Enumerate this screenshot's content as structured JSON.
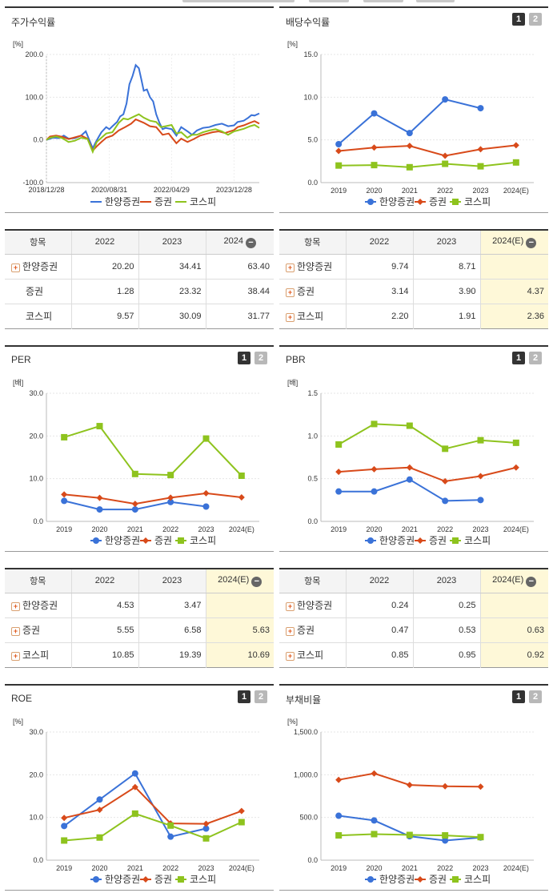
{
  "chart_data": [
    {
      "id": "stock",
      "type": "line",
      "title": "주가수익률",
      "yunit": "[%]",
      "ylim": [
        -100,
        200
      ],
      "yticks": [
        "200.0",
        "100.0",
        "0.0",
        "-100.0"
      ],
      "ytick_values": [
        200,
        100,
        0,
        -100
      ],
      "x_labels": [
        "2018/12/28",
        "2020/08/31",
        "2022/04/29",
        "2023/12/28"
      ],
      "x_start": "2018/12/28",
      "x_end": "2024/08/30",
      "x_tick_dates": [
        "2018/12/28",
        "2020/08/31",
        "2022/04/29",
        "2023/12/28"
      ],
      "series": [
        {
          "name": "한양증권",
          "color": "#3a72d8",
          "points": [
            [
              "2018-12-28",
              0
            ],
            [
              "2019-03-01",
              5
            ],
            [
              "2019-05-01",
              4
            ],
            [
              "2019-06-15",
              10
            ],
            [
              "2019-08-01",
              3
            ],
            [
              "2019-10-01",
              4
            ],
            [
              "2019-12-01",
              10
            ],
            [
              "2020-01-15",
              20
            ],
            [
              "2020-02-15",
              2
            ],
            [
              "2020-03-23",
              -20
            ],
            [
              "2020-04-15",
              -8
            ],
            [
              "2020-05-15",
              5
            ],
            [
              "2020-06-15",
              18
            ],
            [
              "2020-08-01",
              30
            ],
            [
              "2020-09-01",
              25
            ],
            [
              "2020-10-01",
              32
            ],
            [
              "2020-11-15",
              42
            ],
            [
              "2020-12-15",
              55
            ],
            [
              "2021-01-15",
              60
            ],
            [
              "2021-02-15",
              85
            ],
            [
              "2021-03-15",
              130
            ],
            [
              "2021-04-15",
              150
            ],
            [
              "2021-05-15",
              175
            ],
            [
              "2021-06-15",
              168
            ],
            [
              "2021-07-10",
              140
            ],
            [
              "2021-08-01",
              115
            ],
            [
              "2021-09-01",
              118
            ],
            [
              "2021-10-01",
              100
            ],
            [
              "2021-11-01",
              90
            ],
            [
              "2021-12-01",
              60
            ],
            [
              "2022-01-01",
              40
            ],
            [
              "2022-02-01",
              25
            ],
            [
              "2022-03-01",
              28
            ],
            [
              "2022-05-01",
              25
            ],
            [
              "2022-06-15",
              10
            ],
            [
              "2022-08-01",
              30
            ],
            [
              "2022-10-01",
              20
            ],
            [
              "2022-11-15",
              12
            ],
            [
              "2023-01-01",
              22
            ],
            [
              "2023-03-01",
              28
            ],
            [
              "2023-05-01",
              30
            ],
            [
              "2023-07-01",
              35
            ],
            [
              "2023-09-01",
              38
            ],
            [
              "2023-11-01",
              32
            ],
            [
              "2023-12-28",
              34
            ],
            [
              "2024-02-01",
              42
            ],
            [
              "2024-04-01",
              45
            ],
            [
              "2024-05-15",
              52
            ],
            [
              "2024-06-15",
              58
            ],
            [
              "2024-07-15",
              57
            ],
            [
              "2024-08-30",
              62
            ]
          ]
        },
        {
          "name": "증권",
          "color": "#d84a1a",
          "points": [
            [
              "2018-12-28",
              0
            ],
            [
              "2019-02-01",
              8
            ],
            [
              "2019-04-01",
              10
            ],
            [
              "2019-06-01",
              7
            ],
            [
              "2019-08-01",
              2
            ],
            [
              "2019-10-01",
              6
            ],
            [
              "2019-12-01",
              10
            ],
            [
              "2020-02-01",
              3
            ],
            [
              "2020-03-23",
              -25
            ],
            [
              "2020-05-01",
              -15
            ],
            [
              "2020-06-15",
              -5
            ],
            [
              "2020-08-01",
              5
            ],
            [
              "2020-10-01",
              10
            ],
            [
              "2020-12-01",
              22
            ],
            [
              "2021-02-01",
              30
            ],
            [
              "2021-04-01",
              38
            ],
            [
              "2021-05-15",
              48
            ],
            [
              "2021-06-15",
              45
            ],
            [
              "2021-08-01",
              40
            ],
            [
              "2021-10-01",
              32
            ],
            [
              "2021-12-01",
              30
            ],
            [
              "2022-02-01",
              12
            ],
            [
              "2022-04-01",
              15
            ],
            [
              "2022-06-15",
              -8
            ],
            [
              "2022-08-01",
              3
            ],
            [
              "2022-10-01",
              -5
            ],
            [
              "2022-12-01",
              2
            ],
            [
              "2023-02-01",
              10
            ],
            [
              "2023-04-01",
              14
            ],
            [
              "2023-06-01",
              18
            ],
            [
              "2023-08-01",
              20
            ],
            [
              "2023-10-01",
              16
            ],
            [
              "2023-12-28",
              23
            ],
            [
              "2024-02-01",
              30
            ],
            [
              "2024-04-01",
              34
            ],
            [
              "2024-06-01",
              40
            ],
            [
              "2024-07-15",
              44
            ],
            [
              "2024-08-30",
              38
            ]
          ]
        },
        {
          "name": "코스피",
          "color": "#8ec31e",
          "points": [
            [
              "2018-12-28",
              0
            ],
            [
              "2019-02-01",
              5
            ],
            [
              "2019-04-01",
              8
            ],
            [
              "2019-06-01",
              4
            ],
            [
              "2019-08-01",
              -5
            ],
            [
              "2019-10-01",
              -2
            ],
            [
              "2019-12-01",
              5
            ],
            [
              "2020-02-01",
              2
            ],
            [
              "2020-03-23",
              -28
            ],
            [
              "2020-05-01",
              -5
            ],
            [
              "2020-06-15",
              5
            ],
            [
              "2020-08-01",
              15
            ],
            [
              "2020-10-01",
              18
            ],
            [
              "2020-12-01",
              40
            ],
            [
              "2021-01-15",
              50
            ],
            [
              "2021-03-01",
              48
            ],
            [
              "2021-05-01",
              55
            ],
            [
              "2021-06-15",
              60
            ],
            [
              "2021-08-01",
              52
            ],
            [
              "2021-10-01",
              45
            ],
            [
              "2021-12-01",
              42
            ],
            [
              "2022-01-15",
              30
            ],
            [
              "2022-03-01",
              32
            ],
            [
              "2022-04-29",
              35
            ],
            [
              "2022-06-15",
              15
            ],
            [
              "2022-08-01",
              18
            ],
            [
              "2022-09-30",
              5
            ],
            [
              "2022-11-15",
              12
            ],
            [
              "2023-01-01",
              12
            ],
            [
              "2023-03-01",
              18
            ],
            [
              "2023-05-01",
              22
            ],
            [
              "2023-07-01",
              25
            ],
            [
              "2023-09-01",
              20
            ],
            [
              "2023-10-31",
              12
            ],
            [
              "2023-12-28",
              20
            ],
            [
              "2024-02-01",
              22
            ],
            [
              "2024-04-01",
              26
            ],
            [
              "2024-06-01",
              32
            ],
            [
              "2024-07-15",
              35
            ],
            [
              "2024-08-30",
              28
            ]
          ]
        }
      ]
    },
    {
      "id": "div",
      "type": "line",
      "title": "배당수익률",
      "yunit": "[%]",
      "ylim": [
        0,
        15
      ],
      "yticks": [
        "15.0",
        "10.0",
        "5.0",
        "0.0"
      ],
      "ytick_values": [
        15,
        10,
        5,
        0
      ],
      "categories": [
        "2019",
        "2020",
        "2021",
        "2022",
        "2023",
        "2024(E)"
      ],
      "series": [
        {
          "name": "한양증권",
          "color": "#3a72d8",
          "marker": "circle",
          "values": [
            4.5,
            8.1,
            5.8,
            9.74,
            8.71,
            null
          ]
        },
        {
          "name": "증권",
          "color": "#d84a1a",
          "marker": "diamond",
          "values": [
            3.7,
            4.1,
            4.3,
            3.14,
            3.9,
            4.37
          ]
        },
        {
          "name": "코스피",
          "color": "#8ec31e",
          "marker": "square",
          "values": [
            2.0,
            2.05,
            1.8,
            2.2,
            1.91,
            2.36
          ]
        }
      ]
    },
    {
      "id": "per",
      "type": "line",
      "title": "PER",
      "yunit": "[배]",
      "ylim": [
        0,
        30
      ],
      "yticks": [
        "30.0",
        "20.0",
        "10.0",
        "0.0"
      ],
      "ytick_values": [
        30,
        20,
        10,
        0
      ],
      "categories": [
        "2019",
        "2020",
        "2021",
        "2022",
        "2023",
        "2024(E)"
      ],
      "series": [
        {
          "name": "한양증권",
          "color": "#3a72d8",
          "marker": "circle",
          "values": [
            4.8,
            2.8,
            2.8,
            4.53,
            3.47,
            null
          ]
        },
        {
          "name": "증권",
          "color": "#d84a1a",
          "marker": "diamond",
          "values": [
            6.3,
            5.5,
            4.1,
            5.55,
            6.58,
            5.63
          ]
        },
        {
          "name": "코스피",
          "color": "#8ec31e",
          "marker": "square",
          "values": [
            19.7,
            22.3,
            11.1,
            10.85,
            19.39,
            10.69
          ]
        }
      ]
    },
    {
      "id": "pbr",
      "type": "line",
      "title": "PBR",
      "yunit": "[배]",
      "ylim": [
        0,
        1.5
      ],
      "yticks": [
        "1.5",
        "1.0",
        "0.5",
        "0.0"
      ],
      "ytick_values": [
        1.5,
        1.0,
        0.5,
        0
      ],
      "categories": [
        "2019",
        "2020",
        "2021",
        "2022",
        "2023",
        "2024(E)"
      ],
      "series": [
        {
          "name": "한양증권",
          "color": "#3a72d8",
          "marker": "circle",
          "values": [
            0.35,
            0.35,
            0.49,
            0.24,
            0.25,
            null
          ]
        },
        {
          "name": "증권",
          "color": "#d84a1a",
          "marker": "diamond",
          "values": [
            0.58,
            0.61,
            0.63,
            0.47,
            0.53,
            0.63
          ]
        },
        {
          "name": "코스피",
          "color": "#8ec31e",
          "marker": "square",
          "values": [
            0.9,
            1.14,
            1.12,
            0.85,
            0.95,
            0.92
          ]
        }
      ]
    },
    {
      "id": "roe",
      "type": "line",
      "title": "ROE",
      "yunit": "[%]",
      "ylim": [
        0,
        30
      ],
      "yticks": [
        "30.0",
        "20.0",
        "10.0",
        "0.0"
      ],
      "ytick_values": [
        30,
        20,
        10,
        0
      ],
      "categories": [
        "2019",
        "2020",
        "2021",
        "2022",
        "2023",
        "2024(E)"
      ],
      "series": [
        {
          "name": "한양증권",
          "color": "#3a72d8",
          "marker": "circle",
          "values": [
            8.0,
            14.2,
            20.3,
            5.5,
            7.4,
            null
          ]
        },
        {
          "name": "증권",
          "color": "#d84a1a",
          "marker": "diamond",
          "values": [
            9.9,
            11.8,
            17.1,
            8.6,
            8.5,
            11.5
          ]
        },
        {
          "name": "코스피",
          "color": "#8ec31e",
          "marker": "square",
          "values": [
            4.6,
            5.3,
            10.9,
            8.1,
            5.1,
            8.9
          ]
        }
      ]
    },
    {
      "id": "debt",
      "type": "line",
      "title": "부채비율",
      "yunit": "[%]",
      "ylim": [
        0,
        1500
      ],
      "yticks": [
        "1,500.0",
        "1,000.0",
        "500.0",
        "0.0"
      ],
      "ytick_values": [
        1500,
        1000,
        500,
        0
      ],
      "categories": [
        "2019",
        "2020",
        "2021",
        "2022",
        "2023",
        "2024(E)"
      ],
      "series": [
        {
          "name": "한양증권",
          "color": "#3a72d8",
          "marker": "circle",
          "values": [
            520,
            465,
            280,
            230,
            265,
            null
          ]
        },
        {
          "name": "증권",
          "color": "#d84a1a",
          "marker": "diamond",
          "values": [
            940,
            1015,
            880,
            865,
            860,
            null
          ]
        },
        {
          "name": "코스피",
          "color": "#8ec31e",
          "marker": "square",
          "values": [
            290,
            305,
            295,
            290,
            270,
            null
          ]
        }
      ]
    }
  ],
  "legend_names": [
    "한양증권",
    "증권",
    "코스피"
  ],
  "pills": {
    "one": "1",
    "two": "2"
  },
  "tables": {
    "stock": {
      "headers": [
        "항목",
        "2022",
        "2023",
        "2024"
      ],
      "rows": [
        {
          "label": "한양증권",
          "plus": true,
          "cells": [
            "20.20",
            "34.41",
            "63.40"
          ]
        },
        {
          "label": "증권",
          "plus": false,
          "cells": [
            "1.28",
            "23.32",
            "38.44"
          ]
        },
        {
          "label": "코스피",
          "plus": false,
          "cells": [
            "9.57",
            "30.09",
            "31.77"
          ]
        }
      ]
    },
    "div": {
      "headers": [
        "항목",
        "2022",
        "2023",
        "2024(E)"
      ],
      "rows": [
        {
          "label": "한양증권",
          "plus": true,
          "cells": [
            "9.74",
            "8.71",
            ""
          ]
        },
        {
          "label": "증권",
          "plus": true,
          "cells": [
            "3.14",
            "3.90",
            "4.37"
          ]
        },
        {
          "label": "코스피",
          "plus": true,
          "cells": [
            "2.20",
            "1.91",
            "2.36"
          ]
        }
      ]
    },
    "per": {
      "headers": [
        "항목",
        "2022",
        "2023",
        "2024(E)"
      ],
      "rows": [
        {
          "label": "한양증권",
          "plus": true,
          "cells": [
            "4.53",
            "3.47",
            ""
          ]
        },
        {
          "label": "증권",
          "plus": true,
          "cells": [
            "5.55",
            "6.58",
            "5.63"
          ]
        },
        {
          "label": "코스피",
          "plus": true,
          "cells": [
            "10.85",
            "19.39",
            "10.69"
          ]
        }
      ]
    },
    "pbr": {
      "headers": [
        "항목",
        "2022",
        "2023",
        "2024(E)"
      ],
      "rows": [
        {
          "label": "한양증권",
          "plus": true,
          "cells": [
            "0.24",
            "0.25",
            ""
          ]
        },
        {
          "label": "증권",
          "plus": true,
          "cells": [
            "0.47",
            "0.53",
            "0.63"
          ]
        },
        {
          "label": "코스피",
          "plus": true,
          "cells": [
            "0.85",
            "0.95",
            "0.92"
          ]
        }
      ]
    }
  }
}
